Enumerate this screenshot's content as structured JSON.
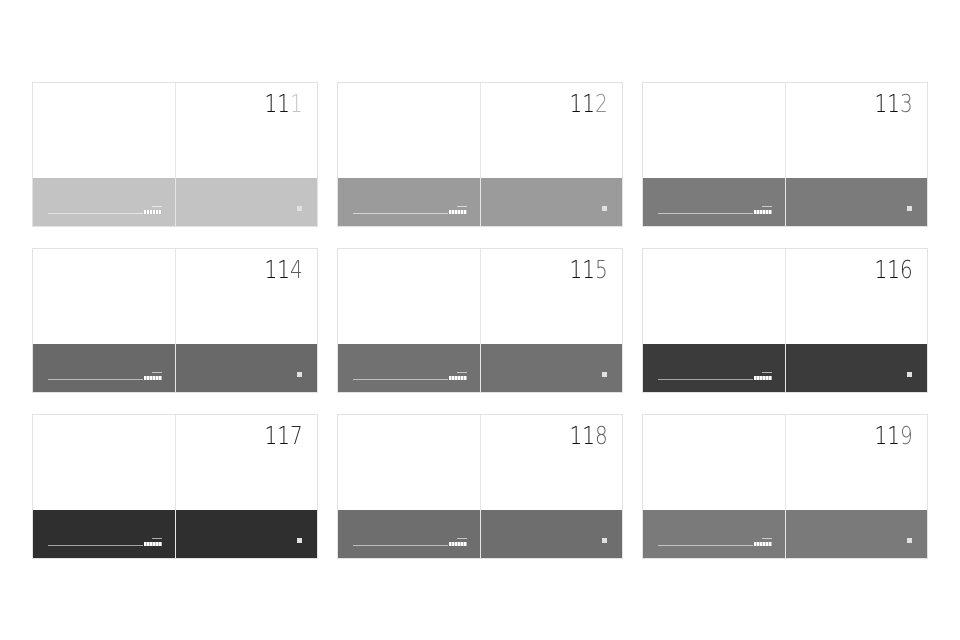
{
  "covers": [
    {
      "prefix": "11",
      "last": "1",
      "last_color": "#c4c4c4",
      "band_color": "#c3c3c3"
    },
    {
      "prefix": "11",
      "last": "2",
      "last_color": "#8f8f8f",
      "band_color": "#9b9b9b"
    },
    {
      "prefix": "11",
      "last": "3",
      "last_color": "#6e6e6e",
      "band_color": "#7b7b7b"
    },
    {
      "prefix": "11",
      "last": "4",
      "last_color": "#5e5e5e",
      "band_color": "#696969"
    },
    {
      "prefix": "11",
      "last": "5",
      "last_color": "#666666",
      "band_color": "#717171"
    },
    {
      "prefix": "11",
      "last": "6",
      "last_color": "#333333",
      "band_color": "#3b3b3b"
    },
    {
      "prefix": "11",
      "last": "7",
      "last_color": "#2a2a2a",
      "band_color": "#2f2f2f"
    },
    {
      "prefix": "11",
      "last": "8",
      "last_color": "#626262",
      "band_color": "#6e6e6e"
    },
    {
      "prefix": "11",
      "last": "9",
      "last_color": "#6e6e6e",
      "band_color": "#7a7a7a"
    }
  ]
}
